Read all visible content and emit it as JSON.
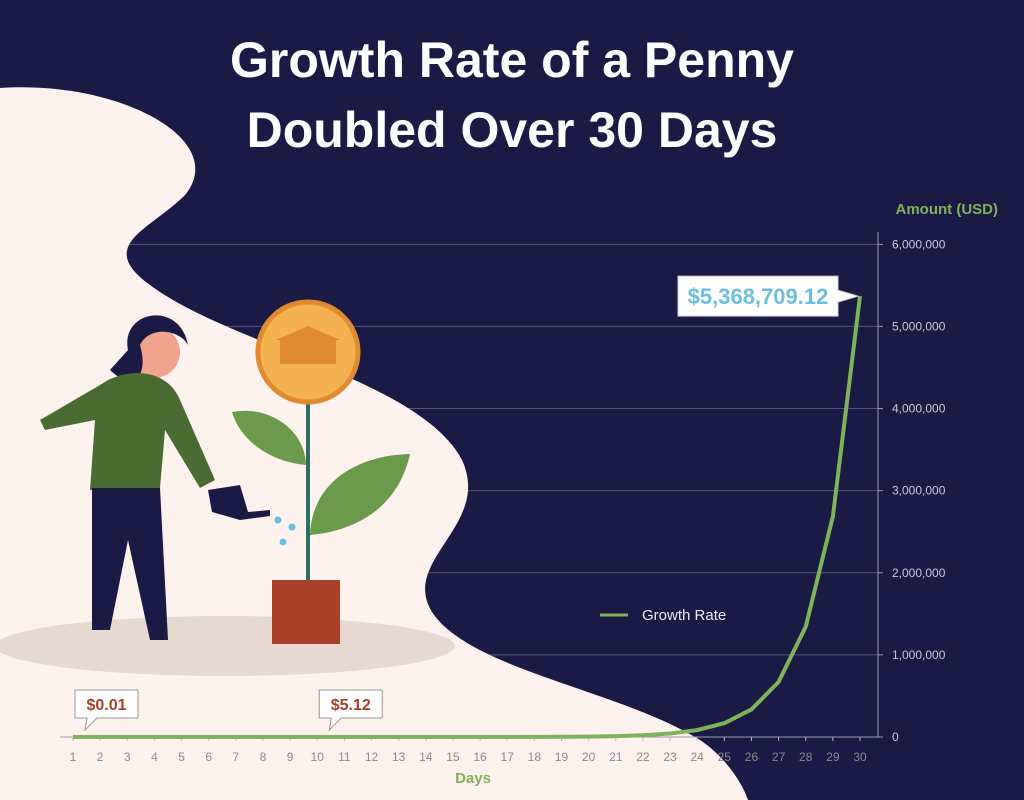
{
  "chart_data": {
    "type": "line",
    "title": [
      "Growth Rate of a Penny",
      "Doubled Over 30 Days"
    ],
    "y_label": "Amount (USD)",
    "x_label": "Days",
    "x": [
      1,
      2,
      3,
      4,
      5,
      6,
      7,
      8,
      9,
      10,
      11,
      12,
      13,
      14,
      15,
      16,
      17,
      18,
      19,
      20,
      21,
      22,
      23,
      24,
      25,
      26,
      27,
      28,
      29,
      30
    ],
    "xlim": [
      1,
      30
    ],
    "xticks": [
      1,
      2,
      3,
      4,
      5,
      6,
      7,
      8,
      9,
      10,
      11,
      12,
      13,
      14,
      15,
      16,
      17,
      18,
      19,
      20,
      21,
      22,
      23,
      24,
      25,
      26,
      27,
      28,
      29,
      30
    ],
    "ylim": [
      0,
      6150000
    ],
    "yticks": [
      0,
      {
        "value": 1000000,
        "label": "1,000,000"
      },
      {
        "value": 2000000,
        "label": "2,000,000"
      },
      {
        "value": 3000000,
        "label": "3,000,000"
      },
      {
        "value": 4000000,
        "label": "4,000,000"
      },
      {
        "value": 5000000,
        "label": "5,000,000"
      },
      {
        "value": 6000000,
        "label": "6,000,000"
      }
    ],
    "grid": true,
    "legend": "right",
    "series": [
      {
        "name": "Growth Rate",
        "color": "#7fb35a",
        "values": [
          0.01,
          0.02,
          0.04,
          0.08,
          0.16,
          0.32,
          0.64,
          1.28,
          2.56,
          5.12,
          10.24,
          20.48,
          40.96,
          81.92,
          163.84,
          327.68,
          655.36,
          1310.72,
          2621.44,
          5242.88,
          10485.76,
          20971.52,
          41943.04,
          83886.08,
          167772.16,
          335544.32,
          671088.64,
          1342177.28,
          2684354.56,
          5368709.12
        ],
        "value_labels": [
          "$0.01",
          null,
          null,
          null,
          null,
          null,
          null,
          null,
          null,
          "$5.12",
          null,
          null,
          null,
          null,
          null,
          null,
          null,
          null,
          null,
          null,
          null,
          null,
          null,
          null,
          null,
          null,
          null,
          null,
          null,
          "$5,368,709.12"
        ]
      }
    ]
  }
}
